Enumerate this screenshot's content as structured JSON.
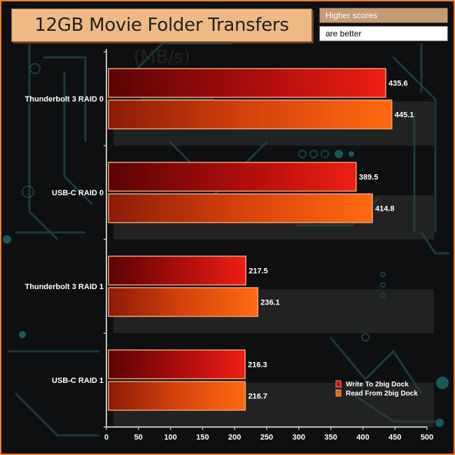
{
  "header": {
    "title": "12GB Movie Folder Transfers (MB/s)",
    "note_line1": "Higher scores",
    "note_line2": "are better"
  },
  "chart_data": {
    "type": "bar",
    "orientation": "horizontal",
    "categories": [
      "Thunderbolt 3 RAID 0",
      "USB-C RAID 0",
      "Thunderbolt 3 RAID 1",
      "USB-C RAID 1"
    ],
    "series": [
      {
        "name": "Write To 2big Dock",
        "values": [
          435.6,
          389.5,
          217.5,
          216.3
        ],
        "color": "#cc1111"
      },
      {
        "name": "Read From 2big Dock",
        "values": [
          445.1,
          414.8,
          236.1,
          216.7
        ],
        "color": "#f06010"
      }
    ],
    "xlim": [
      0,
      500
    ],
    "xticks": [
      0,
      50,
      100,
      150,
      200,
      250,
      300,
      350,
      400,
      450,
      500
    ],
    "legend_position": "bottom-right",
    "grid": false
  }
}
